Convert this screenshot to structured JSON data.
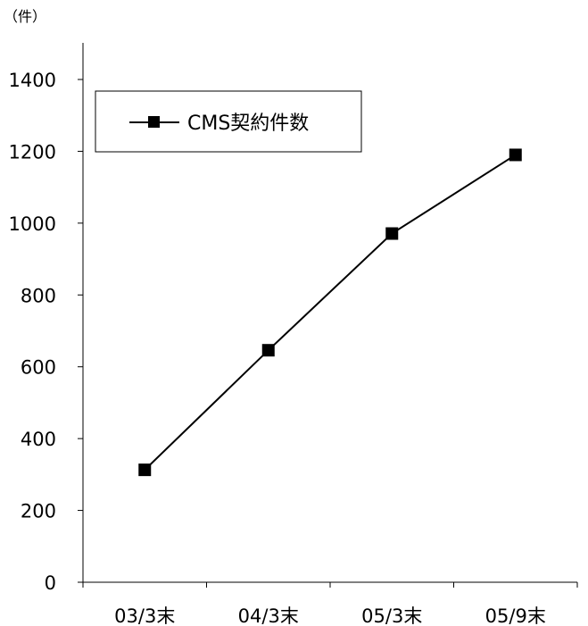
{
  "chart_data": {
    "type": "line",
    "title": "",
    "ylabel": "（件）",
    "xlabel": "",
    "categories": [
      "03/3末",
      "04/3末",
      "05/3末",
      "05/9末"
    ],
    "series": [
      {
        "name": "CMS契約件数",
        "values": [
          313,
          646,
          971,
          1190
        ],
        "marker": "square"
      }
    ],
    "ylim": [
      0,
      1400
    ],
    "yticks": [
      0,
      200,
      400,
      600,
      800,
      1000,
      1200,
      1400
    ],
    "grid": false,
    "legend": "top-left",
    "colors": {
      "line": "#000000",
      "marker": "#000000",
      "axis": "#000000"
    }
  }
}
